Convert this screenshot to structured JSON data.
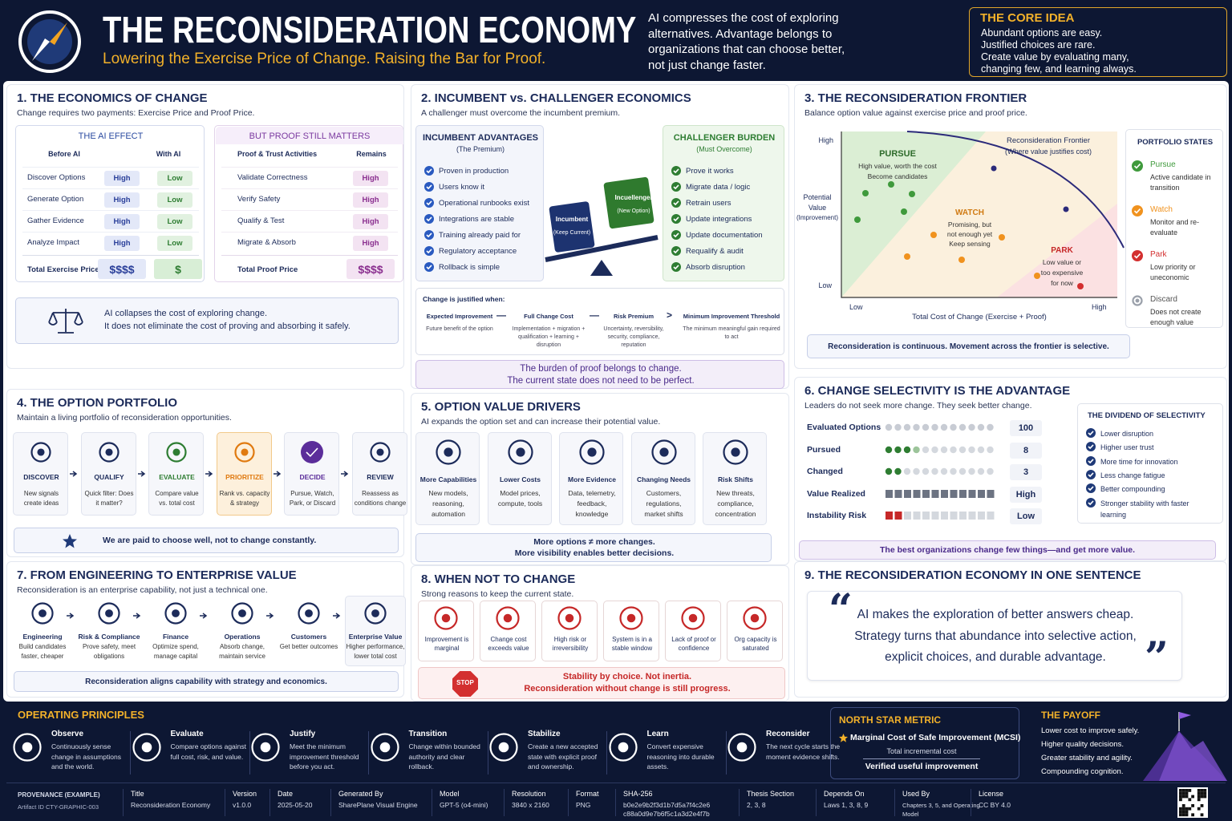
{
  "header": {
    "title": "THE RECONSIDERATION ECONOMY",
    "subtitle": "Lowering the Exercise Price of Change. Raising the Bar for Proof.",
    "intro": [
      "AI compresses the cost of exploring",
      "alternatives. Advantage belongs to",
      "organizations that can choose better,",
      "not just change faster."
    ],
    "core_idea": {
      "heading": "THE CORE IDEA",
      "lines": [
        "Abundant options are easy.",
        "Justified choices are rare.",
        "Create value by evaluating many,",
        "changing few, and learning always."
      ]
    }
  },
  "s1": {
    "title": "1. THE ECONOMICS OF CHANGE",
    "subtitle": "Change requires two payments: Exercise Price and Proof Price.",
    "ai_effect": {
      "heading": "THE AI EFFECT",
      "columns": [
        "Before AI",
        "With AI"
      ],
      "rows": [
        [
          "Discover Options",
          "High",
          "Low"
        ],
        [
          "Generate Option",
          "High",
          "Low"
        ],
        [
          "Gather Evidence",
          "High",
          "Low"
        ],
        [
          "Analyze Impact",
          "High",
          "Low"
        ]
      ],
      "total": [
        "Total Exercise Price",
        "$$$$",
        "$"
      ]
    },
    "proof": {
      "heading": "BUT PROOF STILL MATTERS",
      "columns": [
        "Proof & Trust Activities",
        "Remains"
      ],
      "rows": [
        [
          "Validate Correctness",
          "High"
        ],
        [
          "Verify Safety",
          "High"
        ],
        [
          "Qualify & Test",
          "High"
        ],
        [
          "Migrate & Absorb",
          "High"
        ]
      ],
      "total": [
        "Total Proof Price",
        "$$$$"
      ]
    },
    "note": [
      "AI collapses the cost of exploring change.",
      "It does not eliminate the cost of proving and absorbing it safely."
    ]
  },
  "s2": {
    "title": "2. INCUMBENT vs. CHALLENGER ECONOMICS",
    "subtitle": "A challenger must overcome the incumbent premium.",
    "incumbent": {
      "heading": "INCUMBENT ADVANTAGES",
      "sub": "(The Premium)",
      "items": [
        "Proven in production",
        "Users know it",
        "Operational runbooks exist",
        "Integrations are stable",
        "Training already paid for",
        "Regulatory acceptance",
        "Rollback is simple"
      ]
    },
    "challenger": {
      "heading": "CHALLENGER BURDEN",
      "sub": "(Must Overcome)",
      "items": [
        "Prove it works",
        "Migrate data / logic",
        "Retrain users",
        "Update integrations",
        "Update documentation",
        "Requalify & audit",
        "Absorb disruption"
      ]
    },
    "seesaw": {
      "incumbent": "Incumbent",
      "incumbent_sub": "(Keep Current)",
      "challenger": "Incuellenger",
      "challenger_sub": "(New Option)"
    },
    "formula": {
      "heading": "Change is justified when:",
      "terms": [
        {
          "term": "Expected Improvement",
          "desc": "Future benefit of the option"
        },
        {
          "term": "Full Change Cost",
          "desc": "Implementation + migration + qualification + learning + disruption"
        },
        {
          "term": "Risk Premium",
          "desc": "Uncertainty, reversibility, security, compliance, reputation"
        },
        {
          "term": "Minimum Improvement Threshold",
          "desc": "The minimum meaningful gain required to act"
        }
      ],
      "operators": [
        "—",
        "—",
        ">"
      ]
    },
    "callout": [
      "The burden of proof belongs to change.",
      "The current state does not need to be perfect."
    ]
  },
  "s3": {
    "title": "3. THE RECONSIDERATION FRONTIER",
    "subtitle": "Balance option value against exercise price and proof price.",
    "y_axis": {
      "label": "Potential Value",
      "sub": "(Improvement)",
      "high": "High",
      "low": "Low"
    },
    "x_axis": {
      "label": "Total Cost of Change (Exercise + Proof)",
      "low": "Low",
      "high": "High"
    },
    "frontier": {
      "label": "Reconsideration Frontier",
      "sub": "(Where value justifies cost)"
    },
    "regions": [
      {
        "name": "PURSUE",
        "desc": [
          "High value, worth the cost",
          "Become candidates"
        ]
      },
      {
        "name": "WATCH",
        "desc": [
          "Promising, but",
          "not enough yet",
          "Keep sensing"
        ]
      },
      {
        "name": "PARK",
        "desc": [
          "Low value or",
          "too expensive",
          "for now"
        ]
      }
    ],
    "states": {
      "heading": "PORTFOLIO STATES",
      "items": [
        {
          "name": "Pursue",
          "desc": "Active candidate in transition"
        },
        {
          "name": "Watch",
          "desc": "Monitor and re-evaluate"
        },
        {
          "name": "Park",
          "desc": "Low priority or uneconomic"
        },
        {
          "name": "Discard",
          "desc": "Does not create enough value"
        }
      ]
    },
    "note": "Reconsideration is continuous. Movement across the frontier is selective."
  },
  "s4": {
    "title": "4. THE OPTION PORTFOLIO",
    "subtitle": "Maintain a living portfolio of reconsideration opportunities.",
    "steps": [
      {
        "name": "DISCOVER",
        "desc": "New signals create ideas"
      },
      {
        "name": "QUALIFY",
        "desc": "Quick filter: Does it matter?"
      },
      {
        "name": "EVALUATE",
        "desc": "Compare value vs. total cost"
      },
      {
        "name": "PRIORITIZE",
        "desc": "Rank vs. capacity & strategy"
      },
      {
        "name": "DECIDE",
        "desc": "Pursue, Watch, Park, or Discard"
      },
      {
        "name": "REVIEW",
        "desc": "Reassess as conditions change"
      }
    ],
    "note": "We are paid to choose well, not to change constantly."
  },
  "s5": {
    "title": "5. OPTION VALUE DRIVERS",
    "subtitle": "AI expands the option set and can increase their potential value.",
    "drivers": [
      {
        "name": "More Capabilities",
        "desc": "New models, reasoning, automation"
      },
      {
        "name": "Lower Costs",
        "desc": "Model prices, compute, tools"
      },
      {
        "name": "More Evidence",
        "desc": "Data, telemetry, feedback, knowledge"
      },
      {
        "name": "Changing Needs",
        "desc": "Customers, regulations, market shifts"
      },
      {
        "name": "Risk Shifts",
        "desc": "New threats, compliance, concentration"
      }
    ],
    "note": [
      "More options ≠ more changes.",
      "More visibility enables better decisions."
    ]
  },
  "s6": {
    "title": "6. CHANGE SELECTIVITY IS THE ADVANTAGE",
    "subtitle": "Leaders do not seek more change. They seek better change.",
    "rows": [
      {
        "label": "Evaluated Options",
        "value": 100
      },
      {
        "label": "Pursued",
        "value": 8
      },
      {
        "label": "Changed",
        "value": 3
      },
      {
        "label": "Value Realized",
        "value": "High"
      },
      {
        "label": "Instability Risk",
        "value": "Low"
      }
    ],
    "dividend": {
      "heading": "THE DIVIDEND OF SELECTIVITY",
      "items": [
        "Lower disruption",
        "Higher user trust",
        "More time for innovation",
        "Less change fatigue",
        "Better compounding",
        "Stronger stability with faster learning"
      ]
    },
    "note": "The best organizations change few things—and get more value."
  },
  "s7": {
    "title": "7. FROM ENGINEERING TO ENTERPRISE VALUE",
    "subtitle": "Reconsideration is an enterprise capability, not just a technical one.",
    "items": [
      {
        "name": "Engineering",
        "desc": "Build candidates faster, cheaper"
      },
      {
        "name": "Risk & Compliance",
        "desc": "Prove safety, meet obligations"
      },
      {
        "name": "Finance",
        "desc": "Optimize spend, manage capital"
      },
      {
        "name": "Operations",
        "desc": "Absorb change, maintain service"
      },
      {
        "name": "Customers",
        "desc": "Get better outcomes"
      },
      {
        "name": "Enterprise Value",
        "desc": "Higher performance, lower total cost"
      }
    ],
    "note": "Reconsideration aligns capability with strategy and economics."
  },
  "s8": {
    "title": "8. WHEN NOT TO CHANGE",
    "subtitle": "Strong reasons to keep the current state.",
    "items": [
      "Improvement is marginal",
      "Change cost exceeds value",
      "High risk or irreversibility",
      "System is in a stable window",
      "Lack of proof or confidence",
      "Org capacity is saturated"
    ],
    "stop_sign": "STOP",
    "note": [
      "Stability by choice. Not inertia.",
      "Reconsideration without change is still progress."
    ]
  },
  "s9": {
    "title": "9. THE RECONSIDERATION ECONOMY IN ONE SENTENCE",
    "open_quote": "“",
    "close_quote": "”",
    "quote": [
      "AI makes the exploration of better answers cheap.",
      "Strategy turns that abundance into selective action,",
      "explicit choices, and durable advantage."
    ]
  },
  "footer": {
    "principles": {
      "heading": "OPERATING PRINCIPLES",
      "items": [
        {
          "name": "Observe",
          "desc": "Continuously sense change in assumptions and the world."
        },
        {
          "name": "Evaluate",
          "desc": "Compare options against full cost, risk, and value."
        },
        {
          "name": "Justify",
          "desc": "Meet the minimum improvement threshold before you act."
        },
        {
          "name": "Transition",
          "desc": "Change within bounded authority and clear rollback."
        },
        {
          "name": "Stabilize",
          "desc": "Create a new accepted state with explicit proof and ownership."
        },
        {
          "name": "Learn",
          "desc": "Convert expensive reasoning into durable assets."
        },
        {
          "name": "Reconsider",
          "desc": "The next cycle starts the moment evidence shifts."
        }
      ]
    },
    "north_star": {
      "heading": "NORTH STAR METRIC",
      "metric": "Marginal Cost of Safe Improvement (MCSI)",
      "numerator": "Total incremental cost",
      "denominator": "Verified useful improvement"
    },
    "payoff": {
      "heading": "THE PAYOFF",
      "lines": [
        "Lower cost to improve safely.",
        "Higher quality decisions.",
        "Greater stability and agility.",
        "Compounding cognition."
      ]
    },
    "provenance": {
      "label": "PROVENANCE (EXAMPLE)",
      "artifact": "Artifact ID CTY-GRAPHIC-003",
      "fields": [
        {
          "label": "Title",
          "value": "Reconsideration Economy"
        },
        {
          "label": "Version",
          "value": "v1.0.0"
        },
        {
          "label": "Date",
          "value": "2025-05-20"
        },
        {
          "label": "Generated By",
          "value": "SharePlane Visual Engine"
        },
        {
          "label": "Model",
          "value": "GPT-5 (o4-mini)"
        },
        {
          "label": "Resolution",
          "value": "3840 x 2160"
        },
        {
          "label": "Format",
          "value": "PNG"
        },
        {
          "label": "SHA-256",
          "value": "b0e2e9b2f3d1b7d5a7f4c2e6 c88a0d9e7b6f5c1a3d2e4f7b"
        },
        {
          "label": "Thesis Section",
          "value": "2, 3, 8"
        },
        {
          "label": "Depends On",
          "value": "Laws 1, 3, 8, 9"
        },
        {
          "label": "Used By",
          "value": "Chapters 3, 5, and Operating Model"
        },
        {
          "label": "License",
          "value": "CC BY 4.0"
        }
      ]
    }
  }
}
